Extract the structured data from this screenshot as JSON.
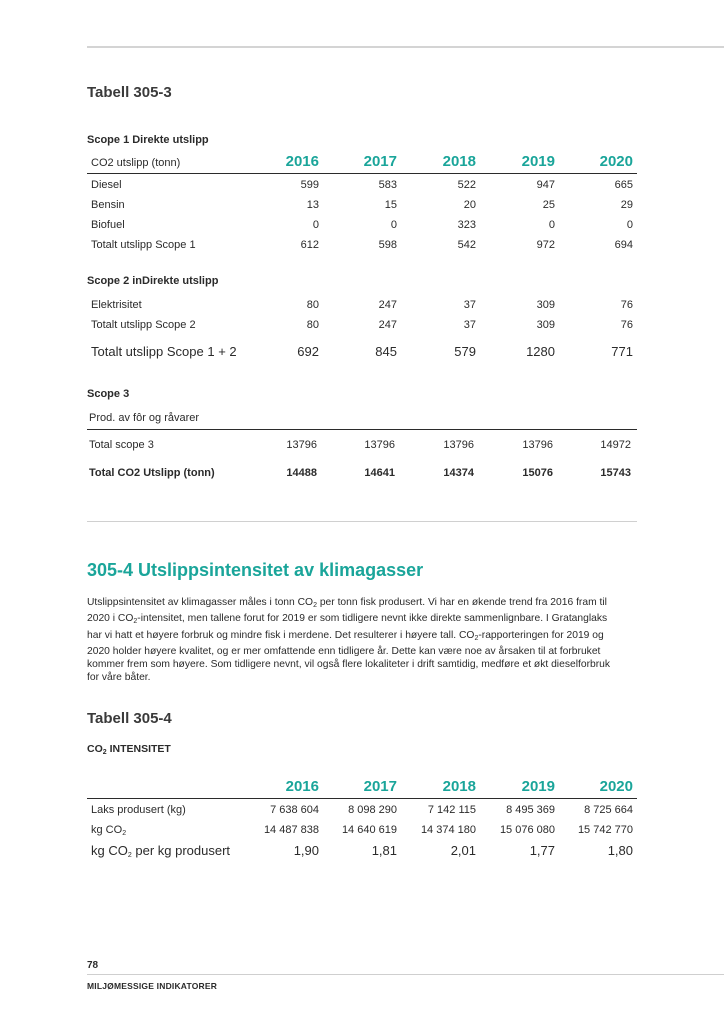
{
  "t3053": {
    "title": "Tabell 305-3",
    "years": [
      "2016",
      "2017",
      "2018",
      "2019",
      "2020"
    ],
    "scope1": {
      "heading": "Scope 1 Direkte utslipp",
      "col_label": "CO2 utslipp (tonn)",
      "rows": [
        {
          "label": "Diesel",
          "values": [
            "599",
            "583",
            "522",
            "947",
            "665"
          ]
        },
        {
          "label": "Bensin",
          "values": [
            "13",
            "15",
            "20",
            "25",
            "29"
          ]
        },
        {
          "label": "Biofuel",
          "values": [
            "0",
            "0",
            "323",
            "0",
            "0"
          ]
        },
        {
          "label": "Totalt utslipp Scope 1",
          "values": [
            "612",
            "598",
            "542",
            "972",
            "694"
          ]
        }
      ]
    },
    "scope2": {
      "heading": "Scope 2 inDirekte utslipp",
      "rows": [
        {
          "label": "Elektrisitet",
          "values": [
            "80",
            "247",
            "37",
            "309",
            "76"
          ]
        },
        {
          "label": "Totalt utslipp Scope 2",
          "values": [
            "80",
            "247",
            "37",
            "309",
            "76"
          ]
        }
      ],
      "total12": {
        "label": "Totalt utslipp Scope 1 + 2",
        "values": [
          "692",
          "845",
          "579",
          "1280",
          "771"
        ]
      }
    },
    "scope3": {
      "heading": "Scope 3",
      "col_label": "Prod. av fôr og råvarer",
      "total": {
        "label": "Total scope 3",
        "values": [
          "13796",
          "13796",
          "13796",
          "13796",
          "14972"
        ]
      },
      "grand": {
        "label": "Total CO2 Utslipp (tonn)",
        "values": [
          "14488",
          "14641",
          "14374",
          "15076",
          "15743"
        ]
      }
    }
  },
  "section": {
    "title": "305-4  Utslippsintensitet av klimagasser",
    "para": {
      "l1a": "Utslippsintensitet av klimagasser måles i tonn CO",
      "l1sub": "2",
      "l1b": " per tonn fisk produsert. Vi har en økende trend fra 2016 fram til",
      "l2a": "2020 i CO",
      "l2sub": "2",
      "l2b": "-intensitet, men tallene forut for 2019 er som tidligere nevnt ikke direkte sammenlignbare. I Gratanglaks",
      "l3": "har vi hatt et høyere forbruk og mindre fisk i merdene. Det resulterer i høyere tall. CO",
      "l3sub": "2",
      "l3b": "-rapporteringen for 2019 og",
      "l4": "2020 holder høyere kvalitet, og er mer omfattende enn tidligere år. Dette kan være noe av årsaken til at forbruket",
      "l5": "kommer frem som høyere. Som tidligere nevnt, vil også flere lokaliteter i drift samtidig, medføre et økt dieselforbruk",
      "l6": "for våre båter."
    }
  },
  "t3054": {
    "title": "Tabell 305-4",
    "heading_a": "CO",
    "heading_sub": "2",
    "heading_b": " INTENSITET",
    "years": [
      "2016",
      "2017",
      "2018",
      "2019",
      "2020"
    ],
    "rows": [
      {
        "label": "Laks produsert (kg)",
        "values": [
          "7 638 604",
          "8 098 290",
          "7 142 115",
          "8 495 369",
          "8 725 664"
        ]
      },
      {
        "label_a": "kg CO",
        "label_sub": "2",
        "values": [
          "14 487 838",
          "14 640 619",
          "14 374 180",
          "15 076 080",
          "15 742 770"
        ]
      },
      {
        "label_a": "kg CO",
        "label_sub": "2",
        "label_b": " per kg produsert",
        "values": [
          "1,90",
          "1,81",
          "2,01",
          "1,77",
          "1,80"
        ]
      }
    ]
  },
  "footer": {
    "page": "78",
    "section": "MILJØMESSIGE INDIKATORER"
  }
}
